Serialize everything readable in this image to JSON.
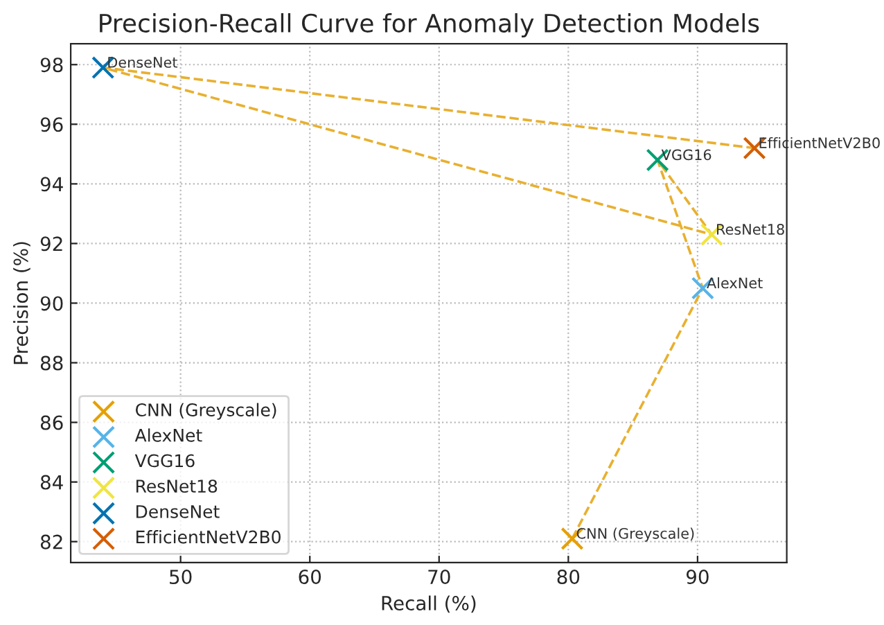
{
  "chart_data": {
    "type": "scatter",
    "title": "Precision-Recall Curve for Anomaly Detection Models",
    "xlabel": "Recall (%)",
    "ylabel": "Precision (%)",
    "xlim": [
      41.5,
      96.9
    ],
    "ylim": [
      81.3,
      98.7
    ],
    "xticks": [
      50,
      60,
      70,
      80,
      90
    ],
    "yticks": [
      82,
      84,
      86,
      88,
      90,
      92,
      94,
      96,
      98
    ],
    "grid": true,
    "legend": "bottom left",
    "marker": "cross",
    "series": [
      {
        "type": "line",
        "color": "#e8b030",
        "line_style": "dashed",
        "marker": "none",
        "x": [
          80.3,
          90.4,
          86.9,
          91.1,
          44.0,
          94.4
        ],
        "values": [
          82.1,
          90.5,
          94.8,
          92.3,
          97.9,
          95.2
        ]
      },
      {
        "name": "CNN (Greyscale)",
        "color": "#e69f00",
        "x": [
          80.3
        ],
        "values": [
          82.1
        ]
      },
      {
        "name": "AlexNet",
        "color": "#56b4e9",
        "x": [
          90.4
        ],
        "values": [
          90.5
        ]
      },
      {
        "name": "VGG16",
        "color": "#009e73",
        "x": [
          86.9
        ],
        "values": [
          94.8
        ]
      },
      {
        "name": "ResNet18",
        "color": "#f0e442",
        "x": [
          91.1
        ],
        "values": [
          92.3
        ]
      },
      {
        "name": "DenseNet",
        "color": "#0072b2",
        "x": [
          44.0
        ],
        "values": [
          97.9
        ]
      },
      {
        "name": "EfficientNetV2B0",
        "color": "#d55e00",
        "x": [
          94.4
        ],
        "values": [
          95.2
        ]
      }
    ],
    "annotations": [
      {
        "text": "CNN (Greyscale)",
        "x": 80.3,
        "y": 82.1
      },
      {
        "text": "AlexNet",
        "x": 90.4,
        "y": 90.5
      },
      {
        "text": "VGG16",
        "x": 86.9,
        "y": 94.8
      },
      {
        "text": "ResNet18",
        "x": 91.1,
        "y": 92.3
      },
      {
        "text": "DenseNet",
        "x": 44.0,
        "y": 97.9
      },
      {
        "text": "EfficientNetV2B0",
        "x": 94.4,
        "y": 95.2
      }
    ]
  }
}
